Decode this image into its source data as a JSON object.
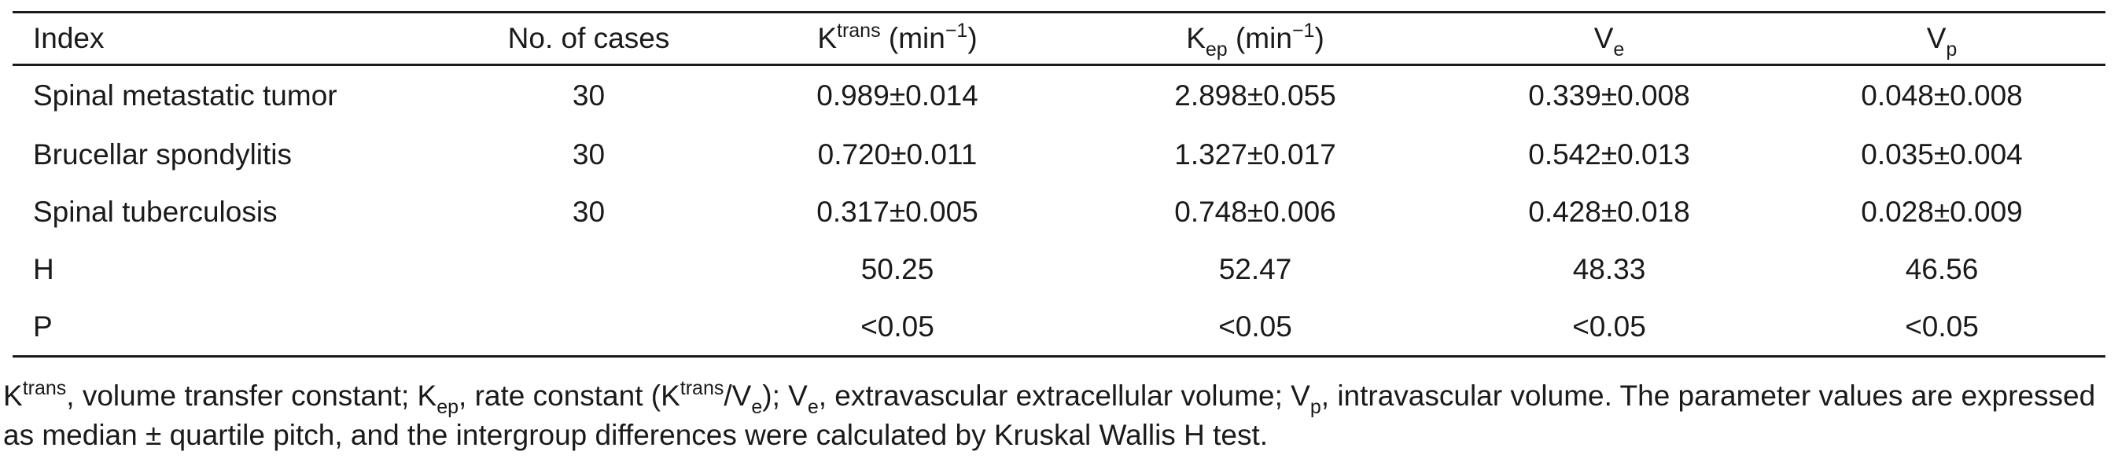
{
  "table": {
    "headers": {
      "index": "Index",
      "cases": "No. of cases",
      "ktrans_base": "K",
      "ktrans_sup": "trans",
      "ktrans_unit": " (min",
      "ktrans_unit_sup": "−1",
      "ktrans_close": ")",
      "kep_base": "K",
      "kep_sub": "ep",
      "kep_unit": " (min",
      "kep_unit_sup": "−1",
      "kep_close": ")",
      "ve_base": "V",
      "ve_sub": "e",
      "vp_base": "V",
      "vp_sub": "p"
    },
    "rows": [
      {
        "index": "Spinal metastatic tumor",
        "cases": "30",
        "ktrans": "0.989±0.014",
        "kep": "2.898±0.055",
        "ve": "0.339±0.008",
        "vp": "0.048±0.008"
      },
      {
        "index": "Brucellar spondylitis",
        "cases": "30",
        "ktrans": "0.720±0.011",
        "kep": "1.327±0.017",
        "ve": "0.542±0.013",
        "vp": "0.035±0.004"
      },
      {
        "index": "Spinal tuberculosis",
        "cases": "30",
        "ktrans": "0.317±0.005",
        "kep": "0.748±0.006",
        "ve": "0.428±0.018",
        "vp": "0.028±0.009"
      },
      {
        "index": "H",
        "cases": "",
        "ktrans": "50.25",
        "kep": "52.47",
        "ve": "48.33",
        "vp": "46.56"
      },
      {
        "index": "P",
        "cases": "",
        "ktrans": "<0.05",
        "kep": "<0.05",
        "ve": "<0.05",
        "vp": "<0.05"
      }
    ]
  },
  "footnote": {
    "k1": "K",
    "k1_sup": "trans",
    "t1": ", volume transfer constant; K",
    "t1_sub": "ep",
    "t2": ", rate constant (K",
    "t2_sup": "trans",
    "t3": "/V",
    "t3_sub": "e",
    "t4": "); V",
    "t4_sub": "e",
    "t5": ", extravascular extracellular volume; V",
    "t5_sub": "p",
    "t6": ", intravascular volume. The parameter values are expressed as median ± quartile pitch, and the intergroup differences were calculated by Kruskal Wallis H test."
  }
}
